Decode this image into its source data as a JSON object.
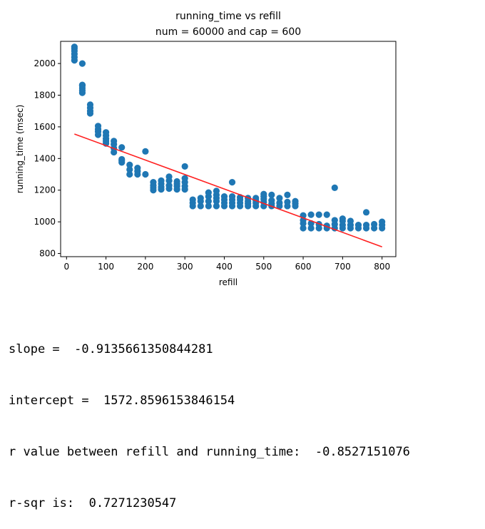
{
  "chart_data": {
    "type": "scatter",
    "title": "running_time vs refill",
    "subtitle": "num = 60000 and cap = 600",
    "xlabel": "refill",
    "ylabel": "running_time (msec)",
    "xlim": [
      -15,
      835
    ],
    "ylim": [
      780,
      2140
    ],
    "xticks": [
      0,
      100,
      200,
      300,
      400,
      500,
      600,
      700,
      800
    ],
    "yticks": [
      800,
      1000,
      1200,
      1400,
      1600,
      1800,
      2000
    ],
    "grid": false,
    "colors": {
      "points": "#1f77b4",
      "fit_line": "#ff2020"
    },
    "fit_line": {
      "x": [
        20,
        800
      ],
      "y": [
        1554.6,
        842.0
      ]
    },
    "points": {
      "x": [
        20,
        20,
        20,
        20,
        20,
        20,
        40,
        40,
        40,
        40,
        40,
        40,
        60,
        60,
        60,
        60,
        80,
        80,
        80,
        80,
        100,
        100,
        100,
        100,
        100,
        120,
        120,
        120,
        120,
        140,
        140,
        140,
        140,
        160,
        160,
        160,
        180,
        180,
        180,
        200,
        200,
        220,
        220,
        220,
        220,
        240,
        240,
        240,
        240,
        260,
        260,
        260,
        260,
        280,
        280,
        280,
        280,
        300,
        300,
        300,
        300,
        300,
        320,
        320,
        320,
        340,
        340,
        340,
        360,
        360,
        360,
        360,
        380,
        380,
        380,
        380,
        380,
        400,
        400,
        400,
        400,
        420,
        420,
        420,
        420,
        420,
        440,
        440,
        440,
        440,
        460,
        460,
        460,
        460,
        480,
        480,
        480,
        480,
        500,
        500,
        500,
        500,
        500,
        520,
        520,
        520,
        520,
        540,
        540,
        540,
        560,
        560,
        560,
        580,
        580,
        580,
        600,
        600,
        600,
        600,
        620,
        620,
        620,
        640,
        640,
        640,
        660,
        660,
        660,
        680,
        680,
        680,
        680,
        700,
        700,
        700,
        700,
        720,
        720,
        720,
        740,
        740,
        760,
        760,
        760,
        780,
        780,
        800,
        800,
        800
      ],
      "y": [
        2020,
        2040,
        2060,
        2080,
        2095,
        2105,
        2000,
        1815,
        1830,
        1845,
        1860,
        1865,
        1685,
        1700,
        1720,
        1740,
        1550,
        1570,
        1585,
        1605,
        1495,
        1510,
        1525,
        1545,
        1565,
        1440,
        1465,
        1490,
        1510,
        1375,
        1385,
        1395,
        1470,
        1300,
        1330,
        1360,
        1300,
        1320,
        1340,
        1300,
        1445,
        1200,
        1215,
        1230,
        1250,
        1205,
        1220,
        1240,
        1260,
        1210,
        1230,
        1260,
        1285,
        1205,
        1225,
        1240,
        1255,
        1205,
        1225,
        1250,
        1275,
        1350,
        1100,
        1120,
        1140,
        1100,
        1130,
        1150,
        1100,
        1130,
        1160,
        1185,
        1100,
        1130,
        1150,
        1170,
        1195,
        1100,
        1120,
        1140,
        1160,
        1100,
        1120,
        1140,
        1160,
        1250,
        1100,
        1120,
        1140,
        1155,
        1100,
        1115,
        1130,
        1150,
        1100,
        1120,
        1135,
        1150,
        1100,
        1125,
        1145,
        1160,
        1175,
        1100,
        1115,
        1135,
        1170,
        1100,
        1120,
        1150,
        1100,
        1125,
        1170,
        1100,
        1115,
        1130,
        960,
        990,
        1010,
        1040,
        960,
        990,
        1045,
        960,
        985,
        1045,
        960,
        975,
        1045,
        960,
        985,
        1010,
        1215,
        960,
        980,
        1005,
        1020,
        960,
        980,
        1005,
        960,
        980,
        960,
        980,
        1060,
        960,
        985,
        960,
        980,
        1000
      ]
    }
  },
  "output_lines": [
    "slope =  -0.9135661350844281",
    "intercept =  1572.8596153846154",
    "r value between refill and running_time:  -0.8527151076",
    "r-sqr is:  0.7271230547"
  ]
}
